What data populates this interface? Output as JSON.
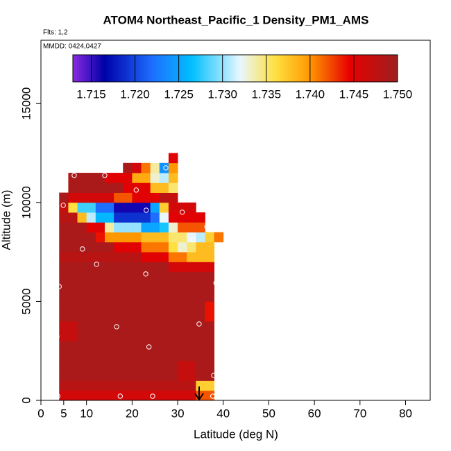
{
  "chart_data": {
    "type": "heatmap",
    "title": "ATOM4 Northeast_Pacific_1 Density_PM1_AMS",
    "subtitle": "Flts: 1,2",
    "annotation": "MMDD: 0424,0427",
    "x_label": "Latitude (deg N)",
    "y_label": "Altitude (m)",
    "xlim": [
      0,
      85.4
    ],
    "ylim": [
      0,
      18200
    ],
    "xticks": [
      0,
      5,
      10,
      20,
      30,
      40,
      50,
      60,
      70,
      80
    ],
    "yticks": [
      0,
      5000,
      10000,
      15000
    ],
    "x_edges": [
      4,
      6,
      8,
      10,
      12,
      14,
      16,
      18,
      20,
      22,
      24,
      26,
      28,
      30,
      32,
      34,
      36,
      38,
      40
    ],
    "y_edges": [
      0,
      500,
      1000,
      2000,
      3000,
      4000,
      5000,
      6000,
      6500,
      7000,
      7500,
      8000,
      8500,
      9000,
      9500,
      10000,
      10500,
      11000,
      11500,
      12000,
      12500
    ],
    "values": [
      [
        1.746,
        1.746,
        1.746,
        1.746,
        1.746,
        1.746,
        1.746,
        1.746,
        1.746,
        1.746,
        1.746,
        1.746,
        1.746,
        1.746,
        1.746,
        1.742,
        1.742,
        null
      ],
      [
        1.748,
        1.748,
        1.748,
        1.748,
        1.748,
        1.748,
        1.748,
        1.748,
        1.748,
        1.748,
        1.748,
        1.748,
        1.748,
        1.748,
        1.748,
        1.737,
        1.737,
        null
      ],
      [
        1.749,
        1.749,
        1.749,
        1.749,
        1.749,
        1.749,
        1.749,
        1.749,
        1.749,
        1.749,
        1.749,
        1.749,
        1.749,
        1.747,
        1.747,
        1.749,
        1.749,
        null
      ],
      [
        1.749,
        1.749,
        1.749,
        1.749,
        1.749,
        1.749,
        1.749,
        1.749,
        1.749,
        1.749,
        1.749,
        1.749,
        1.749,
        1.749,
        1.749,
        1.749,
        1.749,
        null
      ],
      [
        1.747,
        1.747,
        1.749,
        1.749,
        1.749,
        1.749,
        1.749,
        1.749,
        1.749,
        1.749,
        1.749,
        1.749,
        1.749,
        1.749,
        1.749,
        1.749,
        1.749,
        null
      ],
      [
        1.749,
        1.749,
        1.749,
        1.749,
        1.749,
        1.749,
        1.749,
        1.749,
        1.749,
        1.749,
        1.749,
        1.749,
        1.749,
        1.749,
        1.749,
        1.749,
        1.744,
        null
      ],
      [
        1.749,
        1.749,
        1.749,
        1.749,
        1.749,
        1.749,
        1.749,
        1.749,
        1.749,
        1.749,
        1.749,
        1.749,
        1.749,
        1.749,
        1.749,
        1.749,
        1.749,
        null
      ],
      [
        1.749,
        1.749,
        1.749,
        1.749,
        1.749,
        1.749,
        1.749,
        1.749,
        1.749,
        1.749,
        1.749,
        1.749,
        1.749,
        1.749,
        1.749,
        1.749,
        1.749,
        null
      ],
      [
        1.749,
        1.749,
        1.749,
        1.749,
        1.749,
        1.749,
        1.749,
        1.749,
        1.749,
        1.749,
        1.749,
        1.749,
        1.746,
        1.746,
        1.746,
        1.746,
        1.746,
        null
      ],
      [
        1.748,
        1.748,
        1.748,
        1.748,
        1.748,
        1.748,
        1.748,
        1.748,
        1.748,
        1.745,
        1.745,
        1.745,
        1.741,
        1.741,
        1.738,
        1.738,
        1.738,
        null
      ],
      [
        1.749,
        1.749,
        1.749,
        1.749,
        1.749,
        1.749,
        1.745,
        1.745,
        1.745,
        1.741,
        1.741,
        1.741,
        1.736,
        1.733,
        1.735,
        1.738,
        1.738,
        null
      ],
      [
        1.749,
        1.749,
        1.749,
        1.749,
        1.744,
        1.74,
        1.74,
        1.74,
        1.74,
        1.738,
        1.738,
        1.738,
        1.735,
        1.735,
        1.732,
        1.731,
        1.737,
        1.741
      ],
      [
        1.749,
        1.749,
        1.749,
        1.745,
        1.745,
        1.734,
        1.73,
        1.73,
        1.73,
        1.725,
        1.725,
        1.727,
        1.733,
        1.742,
        1.742,
        1.742,
        null,
        null
      ],
      [
        1.748,
        1.748,
        1.738,
        1.731,
        1.726,
        1.726,
        1.719,
        1.719,
        1.719,
        1.719,
        1.722,
        1.732,
        1.745,
        1.745,
        1.745,
        1.745,
        null,
        null
      ],
      [
        1.747,
        1.736,
        1.728,
        1.728,
        1.722,
        1.722,
        1.716,
        1.716,
        1.716,
        1.716,
        1.725,
        1.737,
        1.746,
        1.746,
        1.746,
        null,
        null,
        null
      ],
      [
        1.749,
        1.746,
        1.746,
        1.746,
        1.746,
        1.746,
        1.742,
        1.742,
        1.745,
        1.745,
        1.745,
        1.748,
        1.747,
        null,
        null,
        null,
        null,
        null
      ],
      [
        null,
        1.749,
        1.749,
        1.749,
        1.749,
        1.749,
        1.749,
        1.745,
        1.745,
        1.745,
        1.738,
        1.738,
        1.735,
        null,
        null,
        null,
        null,
        null
      ],
      [
        null,
        1.749,
        1.749,
        1.749,
        1.749,
        1.745,
        1.745,
        1.745,
        1.739,
        1.739,
        1.733,
        1.731,
        1.738,
        null,
        null,
        null,
        null,
        null
      ],
      [
        null,
        null,
        null,
        null,
        null,
        null,
        null,
        1.749,
        1.746,
        1.741,
        1.734,
        1.724,
        1.74,
        null,
        null,
        null,
        null,
        null
      ],
      [
        null,
        null,
        null,
        null,
        null,
        null,
        null,
        null,
        null,
        null,
        null,
        null,
        1.745,
        null,
        null,
        null,
        null,
        null
      ]
    ],
    "points": {
      "x": [
        7.3,
        14.0,
        27.4,
        20.9,
        4.9,
        23.1,
        31.0,
        36.4,
        33.3,
        9.1,
        12.2,
        23.0,
        38.4,
        4.0,
        16.6,
        34.7,
        23.7,
        3.5,
        37.9,
        3.7,
        17.4,
        24.5,
        37.7
      ],
      "y": [
        11370,
        11370,
        11750,
        10630,
        9860,
        9610,
        9510,
        8770,
        8110,
        7650,
        6880,
        6390,
        5930,
        5750,
        3720,
        3860,
        2700,
        3230,
        1260,
        210,
        210,
        210,
        210
      ],
      "color": "#ffffff"
    },
    "colorbar": {
      "lim": [
        1.7129,
        1.75
      ],
      "ticks": [
        1.715,
        {
          "value": 1.72,
          "label": "1.720"
        },
        1.725,
        {
          "value": 1.73,
          "label": "1.730"
        },
        1.735,
        {
          "value": 1.74,
          "label": "1.740"
        },
        1.745,
        {
          "value": 1.75,
          "label": "1.750"
        }
      ],
      "stops": [
        [
          1.7129,
          "#8a2be2"
        ],
        [
          1.7165,
          "#0000a8"
        ],
        [
          1.722,
          "#1e6eff"
        ],
        [
          1.7265,
          "#00c0ff"
        ],
        [
          1.732,
          "#e8f6ff"
        ],
        [
          1.736,
          "#ffe040"
        ],
        [
          1.74,
          "#ff9800"
        ],
        [
          1.7445,
          "#e80000"
        ],
        [
          1.75,
          "#9c2020"
        ]
      ]
    }
  }
}
